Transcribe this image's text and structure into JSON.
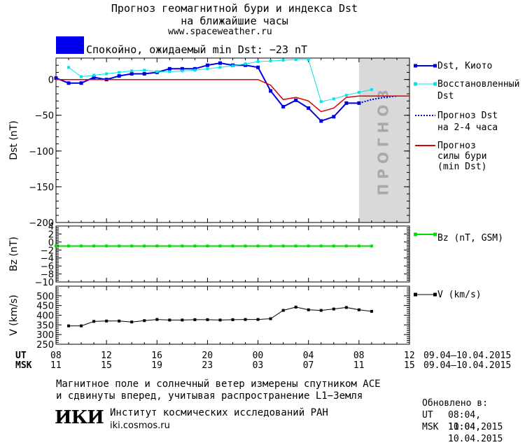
{
  "header": {
    "title_line1": "Прогноз геомагнитной бури и индекса Dst",
    "title_line2": "на ближайшие часы",
    "url": "www.spaceweather.ru"
  },
  "status": {
    "color": "#0000ee",
    "text": "Спокойно, ожидаемый min Dst: −23 nT"
  },
  "colors": {
    "dst_kyoto": "#0000dd",
    "dst_restored": "#00e5ee",
    "dst_forecast": "#0000dd",
    "storm_forecast": "#dd0000",
    "bz": "#00dd00",
    "v": "#000000",
    "forecast_band": "#d9d9d9"
  },
  "legend": {
    "dst_kyoto": "Dst, Киото",
    "dst_restored_line1": "Восстановленный",
    "dst_restored_line2": "Dst",
    "dst_forecast_line1": "Прогноз Dst",
    "dst_forecast_line2": "на 2-4 часа",
    "storm_line1": "Прогноз",
    "storm_line2": "силы бури",
    "storm_line3": "(min Dst)",
    "bz": "Bz (nT, GSM)",
    "v": "V (km/s)"
  },
  "forecast_label": "ПРОГНОЗ",
  "time_axis": {
    "ut_label": "UT",
    "msk_label": "MSK",
    "ut_ticks": [
      "08",
      "12",
      "16",
      "20",
      "00",
      "04",
      "08",
      "12"
    ],
    "msk_ticks": [
      "11",
      "15",
      "19",
      "23",
      "03",
      "07",
      "11",
      "15"
    ],
    "ut_range": "09.04–10.04.2015",
    "msk_range": "09.04–10.04.2015"
  },
  "chart_data": [
    {
      "type": "line",
      "ylabel": "Dst (nT)",
      "x_unit": "hours since 08 UT 09.04.2015",
      "xlim": [
        0,
        28
      ],
      "ylim": [
        -200,
        30
      ],
      "yticks": [
        "0",
        "−50",
        "−100",
        "−150",
        "−200"
      ],
      "ytick_values": [
        0,
        -50,
        -100,
        -150,
        -200
      ],
      "forecast_band": [
        24,
        28
      ],
      "series": [
        {
          "name": "Dst, Киото",
          "x": [
            0,
            1,
            2,
            3,
            4,
            5,
            6,
            7,
            8,
            9,
            10,
            11,
            12,
            13,
            14,
            15,
            16,
            17,
            18,
            19,
            20,
            21,
            22,
            23,
            24
          ],
          "values": [
            2,
            -5,
            -5,
            3,
            0,
            5,
            8,
            8,
            10,
            15,
            15,
            15,
            20,
            23,
            20,
            20,
            17,
            -16,
            -38,
            -29,
            -40,
            -58,
            -52,
            -33,
            -33
          ]
        },
        {
          "name": "Восстановленный Dst",
          "x": [
            1,
            2,
            3,
            4,
            5,
            6,
            7,
            8,
            9,
            10,
            11,
            12,
            13,
            14,
            15,
            16,
            17,
            18,
            19,
            20,
            21,
            22,
            23,
            24,
            25
          ],
          "values": [
            17,
            4,
            6,
            8,
            10,
            12,
            13,
            11,
            11,
            12,
            13,
            15,
            17,
            19,
            22,
            25,
            26,
            27,
            28,
            28,
            -31,
            -27,
            -22,
            -18,
            -14
          ]
        },
        {
          "name": "Прогноз Dst на 2-4 часа",
          "x": [
            24,
            25,
            26,
            27
          ],
          "values": [
            -33,
            -28,
            -25,
            -23
          ]
        },
        {
          "name": "Прогноз силы бури (min Dst)",
          "x": [
            0,
            16,
            17,
            18,
            19,
            20,
            21,
            22,
            23,
            24,
            25,
            26,
            27,
            28
          ],
          "values": [
            0,
            0,
            -8,
            -28,
            -25,
            -30,
            -45,
            -40,
            -25,
            -23,
            -23,
            -23,
            -23,
            -23
          ]
        }
      ]
    },
    {
      "type": "line",
      "ylabel": "Bz (nT)",
      "xlim": [
        0,
        28
      ],
      "ylim": [
        -10,
        4
      ],
      "yticks": [
        "4",
        "2",
        "0",
        "−2",
        "−4",
        "−6",
        "−8",
        "−10"
      ],
      "ytick_values": [
        4,
        2,
        0,
        -2,
        -4,
        -6,
        -8,
        -10
      ],
      "series": [
        {
          "name": "Bz (nT, GSM)",
          "x": [
            0,
            1,
            2,
            3,
            4,
            5,
            6,
            7,
            8,
            9,
            10,
            11,
            12,
            13,
            14,
            15,
            16,
            17,
            18,
            19,
            20,
            21,
            22,
            23,
            24,
            25
          ],
          "values": [
            -1,
            -1,
            -1,
            -1,
            -1,
            -1,
            -1,
            -1,
            -1,
            -1,
            -1,
            -1,
            -1,
            -1,
            -1,
            -1,
            -1,
            -1,
            -1,
            -1,
            -1,
            -1,
            -1,
            -1,
            -1,
            -1
          ]
        }
      ]
    },
    {
      "type": "line",
      "ylabel": "V (km/s)",
      "xlim": [
        0,
        28
      ],
      "ylim": [
        250,
        550
      ],
      "yticks": [
        "500",
        "450",
        "400",
        "350",
        "300",
        "250"
      ],
      "ytick_values": [
        500,
        450,
        400,
        350,
        300,
        250
      ],
      "series": [
        {
          "name": "V (km/s)",
          "x": [
            1,
            2,
            3,
            4,
            5,
            6,
            7,
            8,
            9,
            10,
            11,
            12,
            13,
            14,
            15,
            16,
            17,
            18,
            19,
            20,
            21,
            22,
            23,
            24,
            25
          ],
          "values": [
            345,
            345,
            368,
            370,
            370,
            365,
            372,
            378,
            375,
            375,
            377,
            377,
            375,
            377,
            378,
            378,
            382,
            425,
            442,
            428,
            425,
            432,
            440,
            428,
            420
          ]
        }
      ]
    }
  ],
  "footer": {
    "note_line1": "Магнитное поле и солнечный ветер измерены спутником ACE",
    "note_line2": "и сдвинуты вперед, учитывая распространение L1−Земля",
    "logo_text": "ИКИ",
    "institute": "Институт космических исследований РАН",
    "institute_url": "iki.cosmos.ru",
    "updated_label": "Обновлено в:",
    "updated_ut_label": "UT",
    "updated_ut": "08:04, 10.04.2015",
    "updated_msk_label": "MSK",
    "updated_msk": "11:04, 10.04.2015"
  }
}
